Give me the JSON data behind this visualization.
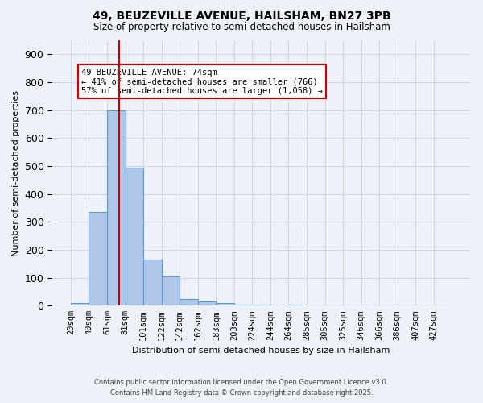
{
  "title1": "49, BEUZEVILLE AVENUE, HAILSHAM, BN27 3PB",
  "title2": "Size of property relative to semi-detached houses in Hailsham",
  "xlabel": "Distribution of semi-detached houses by size in Hailsham",
  "ylabel": "Number of semi-detached properties",
  "bins": [
    "20sqm",
    "40sqm",
    "61sqm",
    "81sqm",
    "101sqm",
    "122sqm",
    "142sqm",
    "162sqm",
    "183sqm",
    "203sqm",
    "224sqm",
    "244sqm",
    "264sqm",
    "285sqm",
    "305sqm",
    "325sqm",
    "346sqm",
    "366sqm",
    "386sqm",
    "407sqm",
    "427sqm"
  ],
  "values": [
    10,
    335,
    700,
    495,
    165,
    105,
    25,
    15,
    10,
    5,
    5,
    0,
    5,
    0,
    0,
    0,
    0,
    0,
    0,
    0,
    0
  ],
  "bar_color": "#aec6e8",
  "bar_edge_color": "#5b9bd5",
  "bar_linewidth": 0.8,
  "grid_color": "#d0d8e8",
  "bg_color": "#eef2f8",
  "red_line_color": "#cc0000",
  "annotation_title": "49 BEUZEVILLE AVENUE: 74sqm",
  "annotation_line1": "← 41% of semi-detached houses are smaller (766)",
  "annotation_line2": "57% of semi-detached houses are larger (1,058) →",
  "annotation_box_color": "#ffffff",
  "annotation_box_edge": "#cc0000",
  "ylim": [
    0,
    950
  ],
  "yticks": [
    0,
    100,
    200,
    300,
    400,
    500,
    600,
    700,
    800,
    900
  ],
  "footer1": "Contains HM Land Registry data © Crown copyright and database right 2025.",
  "footer2": "Contains public sector information licensed under the Open Government Licence v3.0."
}
